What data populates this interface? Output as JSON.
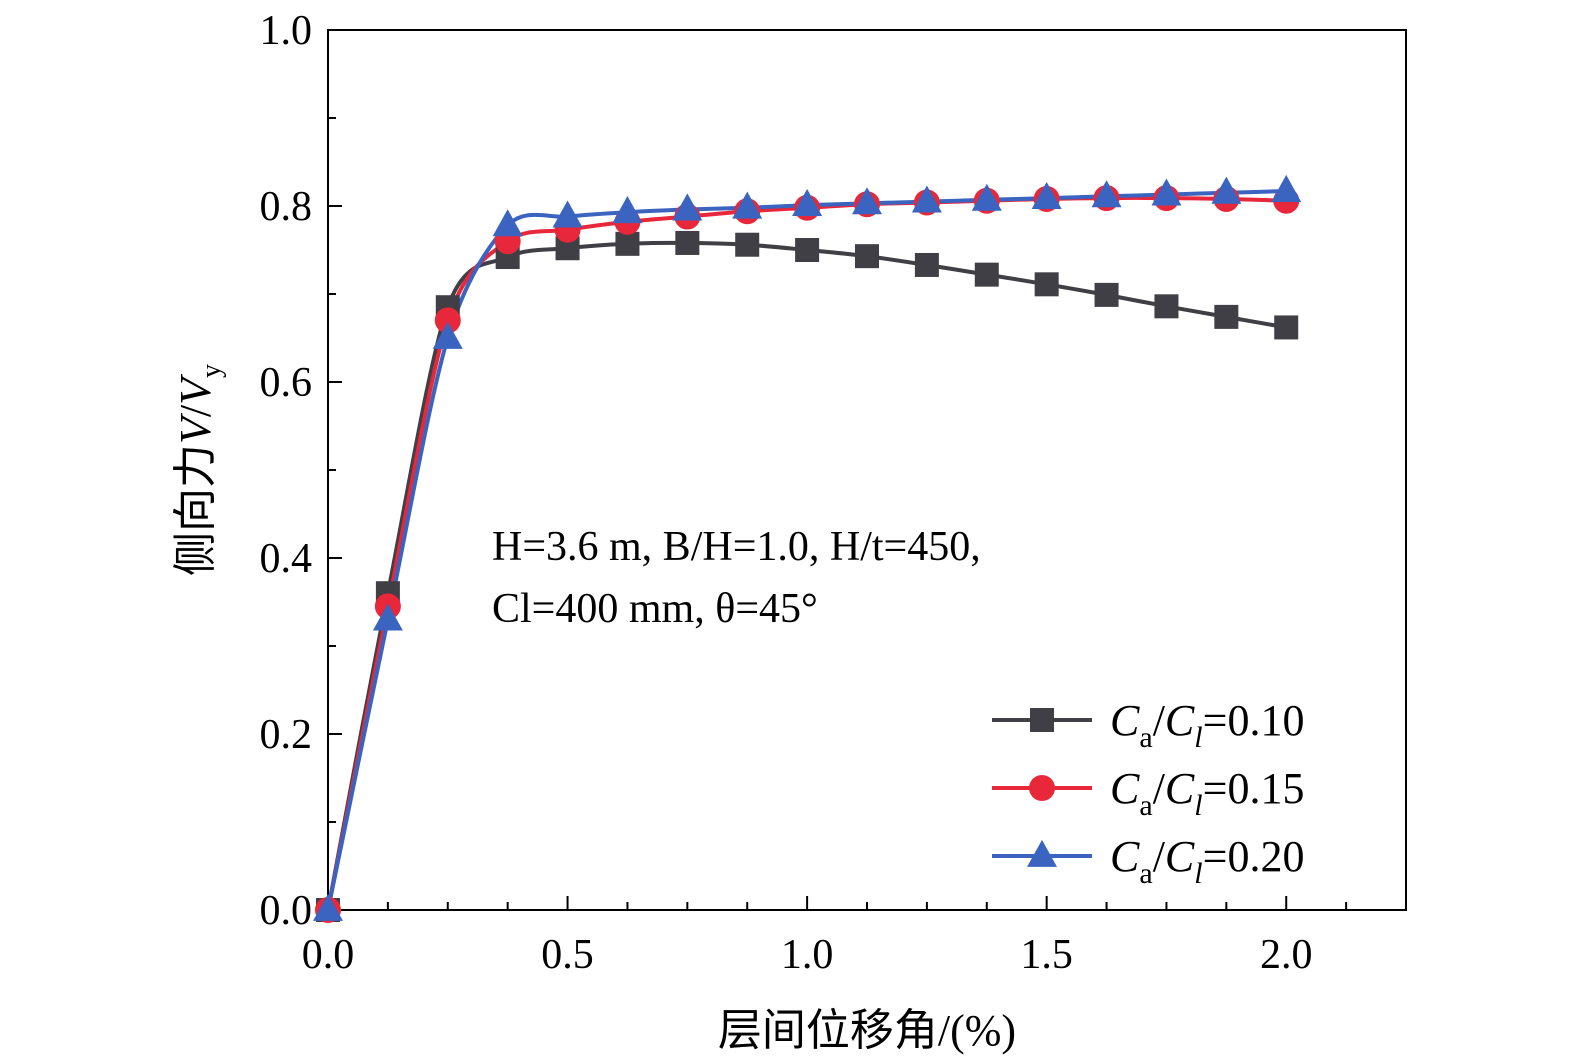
{
  "chart_data": {
    "type": "line",
    "xlabel": "层间位移角/(%)",
    "ylabel": {
      "prefix": "侧向力",
      "v": "V",
      "slash": "/",
      "vy": "V",
      "vy_sub": "y"
    },
    "xlim": [
      0.0,
      2.25
    ],
    "ylim": [
      0.0,
      1.0
    ],
    "xticks": [
      "0.0",
      "0.5",
      "1.0",
      "1.5",
      "2.0"
    ],
    "yticks": [
      "0.0",
      "0.2",
      "0.4",
      "0.6",
      "0.8",
      "1.0"
    ],
    "grid": false,
    "legend_position": "bottom-right",
    "annotation": {
      "line1": "H=3.6 m, B/H=1.0, H/t=450,",
      "line2": "Cl=400 mm, θ=45°"
    },
    "series": [
      {
        "name": "Ca/Cl=0.10",
        "label_parts": {
          "c1": "C",
          "s1": "a",
          "slash": "/",
          "c2": "C",
          "s2": "l",
          "val": "=0.10"
        },
        "color": "#3f3f45",
        "marker": "square",
        "x": [
          0.0,
          0.125,
          0.25,
          0.375,
          0.5,
          0.625,
          0.75,
          0.875,
          1.0,
          1.125,
          1.25,
          1.375,
          1.5,
          1.625,
          1.75,
          1.875,
          2.0
        ],
        "y": [
          0.0,
          0.36,
          0.685,
          0.742,
          0.752,
          0.757,
          0.758,
          0.756,
          0.75,
          0.743,
          0.733,
          0.722,
          0.711,
          0.699,
          0.686,
          0.674,
          0.662
        ]
      },
      {
        "name": "Ca/Cl=0.15",
        "label_parts": {
          "c1": "C",
          "s1": "a",
          "slash": "/",
          "c2": "C",
          "s2": "l",
          "val": "=0.15"
        },
        "color": "#e8283a",
        "marker": "circle",
        "x": [
          0.0,
          0.125,
          0.25,
          0.375,
          0.5,
          0.625,
          0.75,
          0.875,
          1.0,
          1.125,
          1.25,
          1.375,
          1.5,
          1.625,
          1.75,
          1.875,
          2.0
        ],
        "y": [
          0.0,
          0.345,
          0.67,
          0.76,
          0.773,
          0.782,
          0.788,
          0.794,
          0.798,
          0.802,
          0.804,
          0.806,
          0.808,
          0.809,
          0.809,
          0.808,
          0.806
        ]
      },
      {
        "name": "Ca/Cl=0.20",
        "label_parts": {
          "c1": "C",
          "s1": "a",
          "slash": "/",
          "c2": "C",
          "s2": "l",
          "val": "=0.20"
        },
        "color": "#3b63c0",
        "marker": "triangle",
        "x": [
          0.0,
          0.125,
          0.25,
          0.375,
          0.5,
          0.625,
          0.75,
          0.875,
          1.0,
          1.125,
          1.25,
          1.375,
          1.5,
          1.625,
          1.75,
          1.875,
          2.0
        ],
        "y": [
          0.0,
          0.33,
          0.65,
          0.778,
          0.788,
          0.793,
          0.796,
          0.798,
          0.801,
          0.803,
          0.805,
          0.807,
          0.809,
          0.811,
          0.813,
          0.815,
          0.817
        ]
      }
    ]
  }
}
